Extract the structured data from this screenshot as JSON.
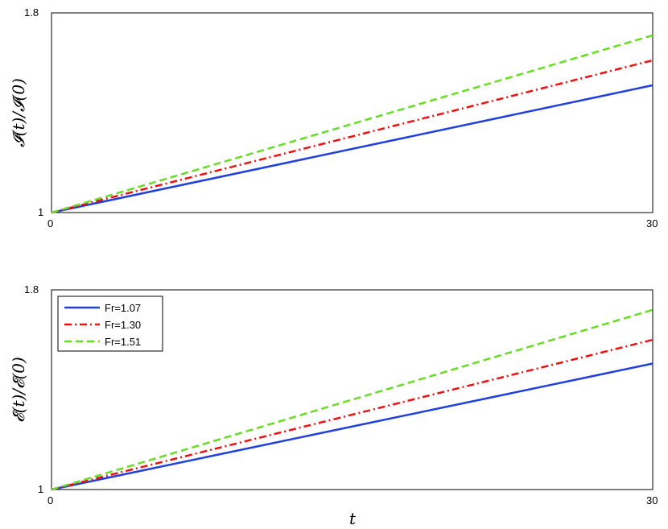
{
  "chart_data": [
    {
      "type": "line",
      "ylabel": "𝓘(t)/𝓘(0)",
      "xlabel": "",
      "xlim": [
        0,
        30
      ],
      "ylim": [
        1,
        1.8
      ],
      "xticks": [
        "0",
        "30"
      ],
      "yticks": [
        "1",
        "1.8"
      ],
      "grid": false,
      "legend": null,
      "series": [
        {
          "name": "Fr=1.07",
          "x": [
            0,
            30
          ],
          "values": [
            1.0,
            1.51
          ],
          "color": "#1f3fdf",
          "style": "solid"
        },
        {
          "name": "Fr=1.30",
          "x": [
            0,
            30
          ],
          "values": [
            1.0,
            1.61
          ],
          "color": "#ee1111",
          "style": "dashdot"
        },
        {
          "name": "Fr=1.51",
          "x": [
            0,
            30
          ],
          "values": [
            1.0,
            1.71
          ],
          "color": "#66dd22",
          "style": "dashed"
        }
      ]
    },
    {
      "type": "line",
      "ylabel": "𝓔(t)/𝓔(0)",
      "xlabel": "t",
      "xlim": [
        0,
        30
      ],
      "ylim": [
        1,
        1.8
      ],
      "xticks": [
        "0",
        "30"
      ],
      "yticks": [
        "1",
        "1.8"
      ],
      "grid": false,
      "legend": "top-left",
      "series": [
        {
          "name": "Fr=1.07",
          "x": [
            0,
            30
          ],
          "values": [
            1.0,
            1.505
          ],
          "color": "#1f3fdf",
          "style": "solid"
        },
        {
          "name": "Fr=1.30",
          "x": [
            0,
            30
          ],
          "values": [
            1.0,
            1.6
          ],
          "color": "#ee1111",
          "style": "dashdot"
        },
        {
          "name": "Fr=1.51",
          "x": [
            0,
            30
          ],
          "values": [
            1.0,
            1.72
          ],
          "color": "#66dd22",
          "style": "dashed"
        }
      ]
    }
  ]
}
